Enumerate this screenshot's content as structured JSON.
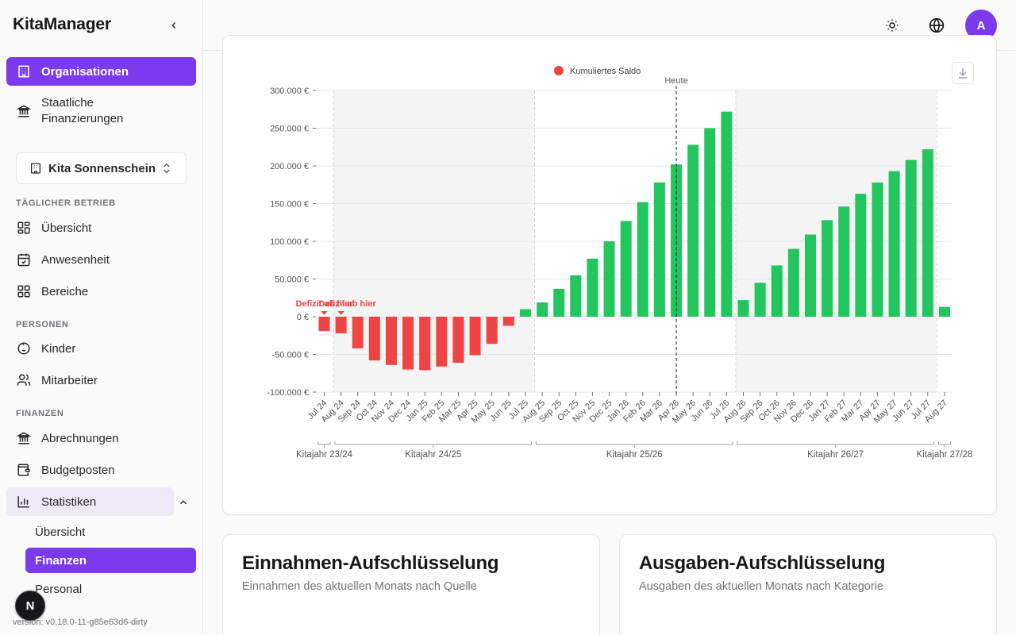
{
  "app": {
    "title": "KitaManager",
    "version": "version: v0.18.0-11-g85e63d6-dirty",
    "next_badge": "N"
  },
  "sidebar": {
    "top_items": [
      {
        "label": "Organisationen",
        "icon": "building-icon"
      },
      {
        "label": "Staatliche Finanzierungen",
        "icon": "landmark-icon"
      }
    ],
    "org_selector": {
      "label": "Kita Sonnenschein"
    },
    "sections": [
      {
        "title": "Täglicher Betrieb",
        "items": [
          {
            "label": "Übersicht",
            "icon": "dashboard-icon"
          },
          {
            "label": "Anwesenheit",
            "icon": "calendar-check-icon"
          },
          {
            "label": "Bereiche",
            "icon": "grid-icon"
          }
        ]
      },
      {
        "title": "Personen",
        "items": [
          {
            "label": "Kinder",
            "icon": "baby-icon"
          },
          {
            "label": "Mitarbeiter",
            "icon": "users-icon"
          }
        ]
      },
      {
        "title": "Finanzen",
        "items": [
          {
            "label": "Abrechnungen",
            "icon": "landmark-icon"
          },
          {
            "label": "Budgetposten",
            "icon": "wallet-icon"
          },
          {
            "label": "Statistiken",
            "icon": "bar-chart-icon"
          }
        ]
      }
    ],
    "stat_sub": [
      "Übersicht",
      "Finanzen",
      "Personal"
    ]
  },
  "header": {
    "avatar_initial": "A"
  },
  "cards": {
    "income": {
      "title": "Einnahmen-Aufschlüsselung",
      "subtitle": "Einnahmen des aktuellen Monats nach Quelle"
    },
    "expense": {
      "title": "Ausgaben-Aufschlüsselung",
      "subtitle": "Ausgaben des aktuellen Monats nach Kategorie"
    }
  },
  "chart_data": {
    "type": "bar",
    "title": "",
    "legend": [
      "Kumuliertes Saldo"
    ],
    "today_label": "Heute",
    "deficit_label": "Defizit ab hier",
    "y_ticks": [
      "300.000 €",
      "250.000 €",
      "200.000 €",
      "150.000 €",
      "100.000 €",
      "50.000 €",
      "0 €",
      "-50.000 €",
      "-100.000 €"
    ],
    "ylim": [
      -100000,
      300000
    ],
    "categories": [
      "Jul 24",
      "Aug 24",
      "Sep 24",
      "Oct 24",
      "Nov 24",
      "Dec 24",
      "Jan 25",
      "Feb 25",
      "Mar 25",
      "Apr 25",
      "May 25",
      "Jun 25",
      "Jul 25",
      "Aug 25",
      "Sep 25",
      "Oct 25",
      "Nov 25",
      "Dec 25",
      "Jan 26",
      "Feb 26",
      "Mar 26",
      "Apr 26",
      "May 26",
      "Jun 26",
      "Jul 26",
      "Aug 26",
      "Sep 26",
      "Oct 26",
      "Nov 26",
      "Dec 26",
      "Jan 27",
      "Feb 27",
      "Mar 27",
      "Apr 27",
      "May 27",
      "Jun 27",
      "Jul 27",
      "Aug 27"
    ],
    "values": [
      -19000,
      -22000,
      -42000,
      -58000,
      -64000,
      -70000,
      -71000,
      -66000,
      -61000,
      -51000,
      -36000,
      -12000,
      10000,
      19000,
      37000,
      55000,
      77000,
      100000,
      127000,
      152000,
      178000,
      202000,
      228000,
      250000,
      272000,
      22000,
      45000,
      68000,
      90000,
      109000,
      128000,
      146000,
      163000,
      178000,
      193000,
      208000,
      222000,
      13000
    ],
    "positive_color": "#22c55e",
    "negative_color": "#ef4444",
    "kitajahre": [
      "Kitajahr 23/24",
      "Kitajahr 24/25",
      "Kitajahr 25/26",
      "Kitajahr 26/27",
      "Kitajahr 27/28"
    ]
  }
}
